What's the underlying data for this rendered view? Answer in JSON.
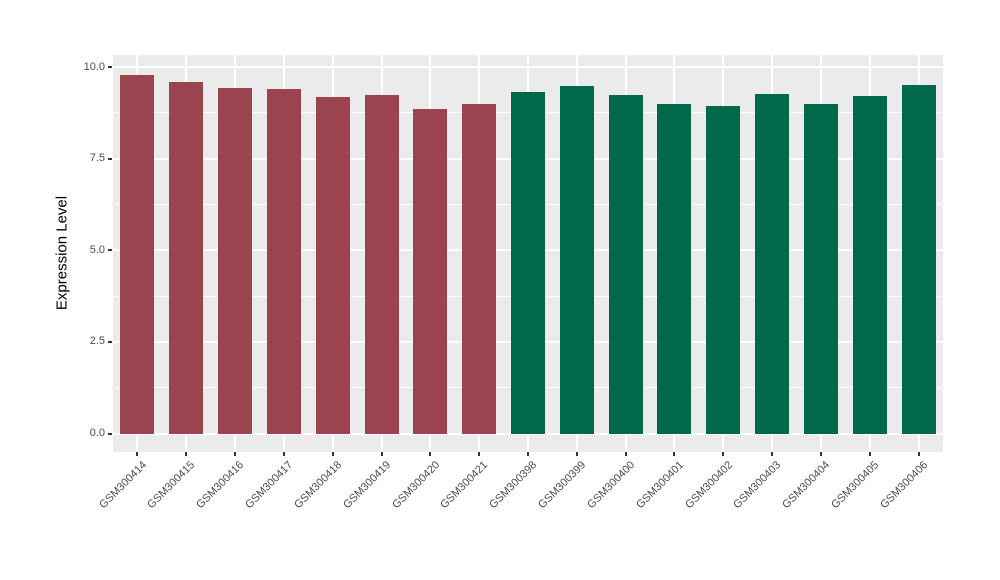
{
  "figure": {
    "background": "#FFFFFF",
    "panel_background": "#EBEBEB",
    "grid_color": "#FFFFFF",
    "axis_text_color": "#4D4D4D",
    "axis_title_color": "#000000",
    "tick_color": "#333333"
  },
  "chart_data": {
    "type": "bar",
    "title": "",
    "xlabel": "",
    "ylabel": "Expression Level",
    "ylim": [
      0,
      10.33
    ],
    "yticks": [
      0.0,
      2.5,
      5.0,
      7.5,
      10.0
    ],
    "ytick_labels": [
      "0.0",
      "2.5",
      "5.0",
      "7.5",
      "10.0"
    ],
    "minor_gridlines": [
      1.25,
      3.75,
      6.25,
      8.75
    ],
    "grid": true,
    "legend": false,
    "bar_width_fraction": 0.7,
    "groups": [
      {
        "name": "group-red",
        "color": "#9C4350"
      },
      {
        "name": "group-green",
        "color": "#00694C"
      }
    ],
    "categories": [
      "GSM300414",
      "GSM300415",
      "GSM300416",
      "GSM300417",
      "GSM300418",
      "GSM300419",
      "GSM300420",
      "GSM300421",
      "GSM300398",
      "GSM300399",
      "GSM300400",
      "GSM300401",
      "GSM300402",
      "GSM300403",
      "GSM300404",
      "GSM300405",
      "GSM300406"
    ],
    "bars": [
      {
        "category": "GSM300414",
        "value": 9.78,
        "group": 0
      },
      {
        "category": "GSM300415",
        "value": 9.6,
        "group": 0
      },
      {
        "category": "GSM300416",
        "value": 9.42,
        "group": 0
      },
      {
        "category": "GSM300417",
        "value": 9.4,
        "group": 0
      },
      {
        "category": "GSM300418",
        "value": 9.18,
        "group": 0
      },
      {
        "category": "GSM300419",
        "value": 9.25,
        "group": 0
      },
      {
        "category": "GSM300420",
        "value": 8.86,
        "group": 0
      },
      {
        "category": "GSM300421",
        "value": 8.98,
        "group": 0
      },
      {
        "category": "GSM300398",
        "value": 9.31,
        "group": 1
      },
      {
        "category": "GSM300399",
        "value": 9.49,
        "group": 1
      },
      {
        "category": "GSM300400",
        "value": 9.23,
        "group": 1
      },
      {
        "category": "GSM300401",
        "value": 9.0,
        "group": 1
      },
      {
        "category": "GSM300402",
        "value": 8.95,
        "group": 1
      },
      {
        "category": "GSM300403",
        "value": 9.27,
        "group": 1
      },
      {
        "category": "GSM300404",
        "value": 9.0,
        "group": 1
      },
      {
        "category": "GSM300405",
        "value": 9.2,
        "group": 1
      },
      {
        "category": "GSM300406",
        "value": 9.52,
        "group": 1
      }
    ]
  }
}
